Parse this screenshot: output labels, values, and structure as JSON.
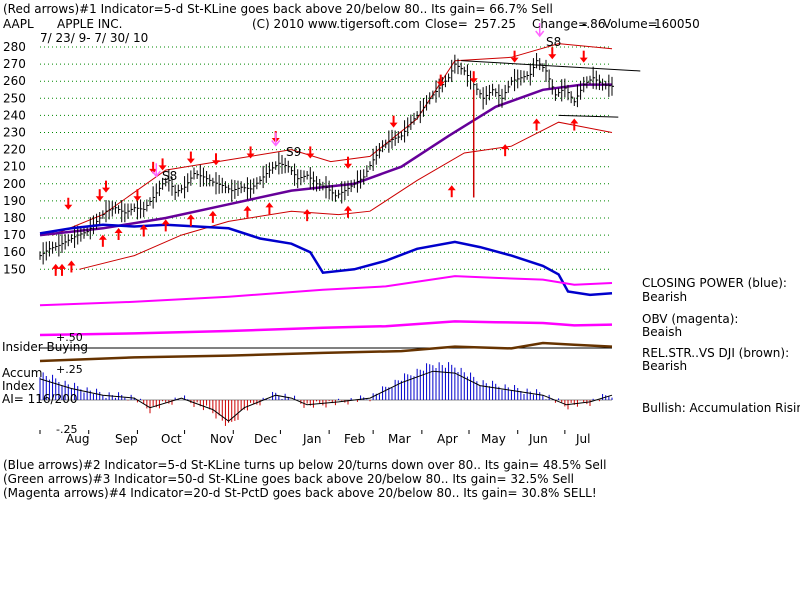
{
  "header": {
    "line1": "(Red arrows)#1 Indicator=5-d St-KLine goes back above 20/below 80.. Its gain= 66.7% Sell",
    "symbol": "AAPL",
    "company": "APPLE INC.",
    "copyright": "(C) 2010 www.tigersoft.com",
    "close_label": "Close=",
    "close_value": "257.25",
    "change_label": "Change=",
    "change_value": "-.86",
    "volume_label": "Volume=",
    "volume_value": "160050",
    "date_range": "7/ 23/ 9- 7/ 30/ 10"
  },
  "footer": {
    "line1": "(Blue arrows)#2 Indicator=5-d St-KLine turns up below 20/turns down over 80.. Its gain= 48.5% Sell",
    "line2": "(Green arrows)#3 Indicator=50-d St-KLine goes back above 20/below 80.. Its gain= 32.5% Sell",
    "line3": "(Magenta arrows)#4 Indicator=20-d St-PctD goes back above 20/below 80.. Its gain= 30.8% SELL!"
  },
  "side_labels": {
    "closing_power": "CLOSING POWER (blue):",
    "closing_power_value": "Bearish",
    "obv": "OBV (magenta):",
    "obv_value": "Beaish",
    "relstr": "REL.STR..VS DJI (brown):",
    "relstr_value": "Bearish",
    "bullish": "Bullish: Accumulation Rising"
  },
  "panel_labels": {
    "insider": "Insider Buying",
    "plus50": "+.50",
    "plus25": "+.25",
    "accum": "Accum",
    "index": "Index",
    "ai": "AI= 116/200",
    "minus25": "-.25"
  },
  "sell_labels": [
    "S8",
    "S9",
    "S8"
  ],
  "colors": {
    "price_bars": "#000000",
    "bands": "#cc0000",
    "ma50": "#660099",
    "closing_power": "#0000cc",
    "obv": "#ff00ff",
    "relstr": "#663300",
    "sell_arrow_red": "#ff0000",
    "buy_arrow_red": "#ff0000",
    "magenta_arrow": "#ff66ff",
    "accum_positive": "#0000cc",
    "accum_negative": "#cc0000",
    "grid": "#008800"
  },
  "chart_data": {
    "type": "line",
    "price_axis": {
      "ticks": [
        150,
        160,
        170,
        180,
        190,
        200,
        210,
        220,
        230,
        240,
        250,
        260,
        270,
        280
      ],
      "ylim": [
        142,
        285
      ]
    },
    "months": [
      "Aug",
      "Sep",
      "Oct",
      "Nov",
      "Dec",
      "Jan",
      "Feb",
      "Mar",
      "Apr",
      "May",
      "Jun",
      "Jul"
    ],
    "close_series": [
      {
        "d": 0,
        "v": 158
      },
      {
        "d": 6,
        "v": 162
      },
      {
        "d": 12,
        "v": 164
      },
      {
        "d": 18,
        "v": 167
      },
      {
        "d": 24,
        "v": 170
      },
      {
        "d": 30,
        "v": 172
      },
      {
        "d": 36,
        "v": 178
      },
      {
        "d": 42,
        "v": 184
      },
      {
        "d": 48,
        "v": 186
      },
      {
        "d": 54,
        "v": 183
      },
      {
        "d": 60,
        "v": 186
      },
      {
        "d": 66,
        "v": 185
      },
      {
        "d": 72,
        "v": 192
      },
      {
        "d": 78,
        "v": 200
      },
      {
        "d": 82,
        "v": 202
      },
      {
        "d": 86,
        "v": 195
      },
      {
        "d": 92,
        "v": 198
      },
      {
        "d": 98,
        "v": 206
      },
      {
        "d": 104,
        "v": 204
      },
      {
        "d": 110,
        "v": 201
      },
      {
        "d": 116,
        "v": 199
      },
      {
        "d": 122,
        "v": 196
      },
      {
        "d": 128,
        "v": 198
      },
      {
        "d": 134,
        "v": 197
      },
      {
        "d": 140,
        "v": 202
      },
      {
        "d": 146,
        "v": 208
      },
      {
        "d": 152,
        "v": 212
      },
      {
        "d": 158,
        "v": 210
      },
      {
        "d": 164,
        "v": 203
      },
      {
        "d": 170,
        "v": 205
      },
      {
        "d": 176,
        "v": 200
      },
      {
        "d": 182,
        "v": 198
      },
      {
        "d": 188,
        "v": 193
      },
      {
        "d": 194,
        "v": 196
      },
      {
        "d": 200,
        "v": 200
      },
      {
        "d": 206,
        "v": 204
      },
      {
        "d": 212,
        "v": 214
      },
      {
        "d": 218,
        "v": 222
      },
      {
        "d": 224,
        "v": 226
      },
      {
        "d": 230,
        "v": 228
      },
      {
        "d": 236,
        "v": 236
      },
      {
        "d": 242,
        "v": 242
      },
      {
        "d": 248,
        "v": 250
      },
      {
        "d": 254,
        "v": 256
      },
      {
        "d": 260,
        "v": 262
      },
      {
        "d": 264,
        "v": 270
      },
      {
        "d": 270,
        "v": 266
      },
      {
        "d": 276,
        "v": 258
      },
      {
        "d": 282,
        "v": 250
      },
      {
        "d": 288,
        "v": 255
      },
      {
        "d": 294,
        "v": 250
      },
      {
        "d": 300,
        "v": 260
      },
      {
        "d": 306,
        "v": 262
      },
      {
        "d": 312,
        "v": 264
      },
      {
        "d": 316,
        "v": 272
      },
      {
        "d": 322,
        "v": 266
      },
      {
        "d": 328,
        "v": 252
      },
      {
        "d": 334,
        "v": 256
      },
      {
        "d": 340,
        "v": 248
      },
      {
        "d": 346,
        "v": 258
      },
      {
        "d": 352,
        "v": 262
      },
      {
        "d": 358,
        "v": 258
      },
      {
        "d": 364,
        "v": 257
      }
    ],
    "ma50": [
      {
        "d": 0,
        "v": 170
      },
      {
        "d": 40,
        "v": 174
      },
      {
        "d": 80,
        "v": 180
      },
      {
        "d": 120,
        "v": 188
      },
      {
        "d": 160,
        "v": 196
      },
      {
        "d": 200,
        "v": 200
      },
      {
        "d": 230,
        "v": 210
      },
      {
        "d": 260,
        "v": 228
      },
      {
        "d": 290,
        "v": 245
      },
      {
        "d": 320,
        "v": 255
      },
      {
        "d": 345,
        "v": 258
      },
      {
        "d": 364,
        "v": 258
      }
    ],
    "upper_band": [
      {
        "d": 8,
        "v": 170
      },
      {
        "d": 40,
        "v": 182
      },
      {
        "d": 80,
        "v": 208
      },
      {
        "d": 120,
        "v": 214
      },
      {
        "d": 160,
        "v": 220
      },
      {
        "d": 185,
        "v": 213
      },
      {
        "d": 210,
        "v": 216
      },
      {
        "d": 240,
        "v": 238
      },
      {
        "d": 264,
        "v": 272
      },
      {
        "d": 300,
        "v": 274
      },
      {
        "d": 330,
        "v": 282
      },
      {
        "d": 364,
        "v": 279
      }
    ],
    "lower_band": [
      {
        "d": 25,
        "v": 150
      },
      {
        "d": 60,
        "v": 158
      },
      {
        "d": 90,
        "v": 170
      },
      {
        "d": 120,
        "v": 178
      },
      {
        "d": 160,
        "v": 184
      },
      {
        "d": 190,
        "v": 182
      },
      {
        "d": 210,
        "v": 184
      },
      {
        "d": 240,
        "v": 202
      },
      {
        "d": 270,
        "v": 218
      },
      {
        "d": 300,
        "v": 222
      },
      {
        "d": 330,
        "v": 236
      },
      {
        "d": 364,
        "v": 230
      }
    ],
    "closing_power": [
      {
        "d": 0,
        "v": 171
      },
      {
        "d": 20,
        "v": 174
      },
      {
        "d": 40,
        "v": 176
      },
      {
        "d": 60,
        "v": 175
      },
      {
        "d": 80,
        "v": 176
      },
      {
        "d": 100,
        "v": 175
      },
      {
        "d": 120,
        "v": 174
      },
      {
        "d": 140,
        "v": 168
      },
      {
        "d": 160,
        "v": 165
      },
      {
        "d": 172,
        "v": 160
      },
      {
        "d": 180,
        "v": 148
      },
      {
        "d": 200,
        "v": 150
      },
      {
        "d": 220,
        "v": 155
      },
      {
        "d": 240,
        "v": 162
      },
      {
        "d": 264,
        "v": 166
      },
      {
        "d": 280,
        "v": 163
      },
      {
        "d": 300,
        "v": 158
      },
      {
        "d": 320,
        "v": 152
      },
      {
        "d": 330,
        "v": 147
      },
      {
        "d": 336,
        "v": 137
      },
      {
        "d": 350,
        "v": 135
      },
      {
        "d": 364,
        "v": 136
      }
    ],
    "obv_line": [
      {
        "d": 0,
        "v": 129
      },
      {
        "d": 60,
        "v": 131
      },
      {
        "d": 120,
        "v": 134
      },
      {
        "d": 180,
        "v": 138
      },
      {
        "d": 220,
        "v": 140
      },
      {
        "d": 264,
        "v": 146
      },
      {
        "d": 290,
        "v": 145
      },
      {
        "d": 320,
        "v": 144
      },
      {
        "d": 340,
        "v": 141
      },
      {
        "d": 364,
        "v": 142
      }
    ],
    "sell_arrows": [
      {
        "d": 18,
        "v": 186
      },
      {
        "d": 38,
        "v": 191
      },
      {
        "d": 42,
        "v": 196
      },
      {
        "d": 62,
        "v": 191
      },
      {
        "d": 72,
        "v": 207
      },
      {
        "d": 78,
        "v": 209
      },
      {
        "d": 96,
        "v": 213
      },
      {
        "d": 112,
        "v": 212
      },
      {
        "d": 134,
        "v": 216
      },
      {
        "d": 150,
        "v": 225
      },
      {
        "d": 172,
        "v": 216
      },
      {
        "d": 196,
        "v": 210
      },
      {
        "d": 225,
        "v": 234
      },
      {
        "d": 255,
        "v": 258
      },
      {
        "d": 276,
        "v": 260
      },
      {
        "d": 302,
        "v": 272
      },
      {
        "d": 326,
        "v": 274
      },
      {
        "d": 346,
        "v": 272
      }
    ],
    "buy_arrows": [
      {
        "d": 10,
        "v": 152
      },
      {
        "d": 14,
        "v": 152
      },
      {
        "d": 20,
        "v": 154
      },
      {
        "d": 40,
        "v": 169
      },
      {
        "d": 50,
        "v": 173
      },
      {
        "d": 66,
        "v": 175
      },
      {
        "d": 80,
        "v": 178
      },
      {
        "d": 96,
        "v": 181
      },
      {
        "d": 110,
        "v": 183
      },
      {
        "d": 132,
        "v": 186
      },
      {
        "d": 146,
        "v": 188
      },
      {
        "d": 170,
        "v": 184
      },
      {
        "d": 196,
        "v": 186
      },
      {
        "d": 262,
        "v": 198
      },
      {
        "d": 296,
        "v": 222
      },
      {
        "d": 316,
        "v": 237
      },
      {
        "d": 340,
        "v": 237
      }
    ],
    "accum_index": [
      {
        "d": 0,
        "v": 0.22
      },
      {
        "d": 20,
        "v": 0.12
      },
      {
        "d": 40,
        "v": 0.05
      },
      {
        "d": 60,
        "v": 0.02
      },
      {
        "d": 70,
        "v": -0.08
      },
      {
        "d": 90,
        "v": 0.02
      },
      {
        "d": 110,
        "v": -0.1
      },
      {
        "d": 120,
        "v": -0.22
      },
      {
        "d": 130,
        "v": -0.08
      },
      {
        "d": 150,
        "v": 0.05
      },
      {
        "d": 160,
        "v": 0.02
      },
      {
        "d": 170,
        "v": -0.05
      },
      {
        "d": 190,
        "v": -0.02
      },
      {
        "d": 210,
        "v": 0.02
      },
      {
        "d": 230,
        "v": 0.18
      },
      {
        "d": 250,
        "v": 0.3
      },
      {
        "d": 264,
        "v": 0.28
      },
      {
        "d": 280,
        "v": 0.15
      },
      {
        "d": 300,
        "v": 0.1
      },
      {
        "d": 320,
        "v": 0.05
      },
      {
        "d": 335,
        "v": -0.05
      },
      {
        "d": 350,
        "v": -0.02
      },
      {
        "d": 364,
        "v": 0.05
      }
    ],
    "relstr_line": [
      {
        "d": 0,
        "v": 0
      },
      {
        "d": 60,
        "v": 0.2
      },
      {
        "d": 120,
        "v": 0.3
      },
      {
        "d": 180,
        "v": 0.45
      },
      {
        "d": 230,
        "v": 0.55
      },
      {
        "d": 264,
        "v": 0.8
      },
      {
        "d": 300,
        "v": 0.7
      },
      {
        "d": 320,
        "v": 1.0
      },
      {
        "d": 340,
        "v": 0.9
      },
      {
        "d": 364,
        "v": 0.8
      }
    ],
    "trend_lines": [
      {
        "d1": 268,
        "v1": 272,
        "d2": 382,
        "v2": 266
      },
      {
        "d1": 330,
        "v1": 240,
        "d2": 368,
        "v2": 239
      }
    ]
  }
}
